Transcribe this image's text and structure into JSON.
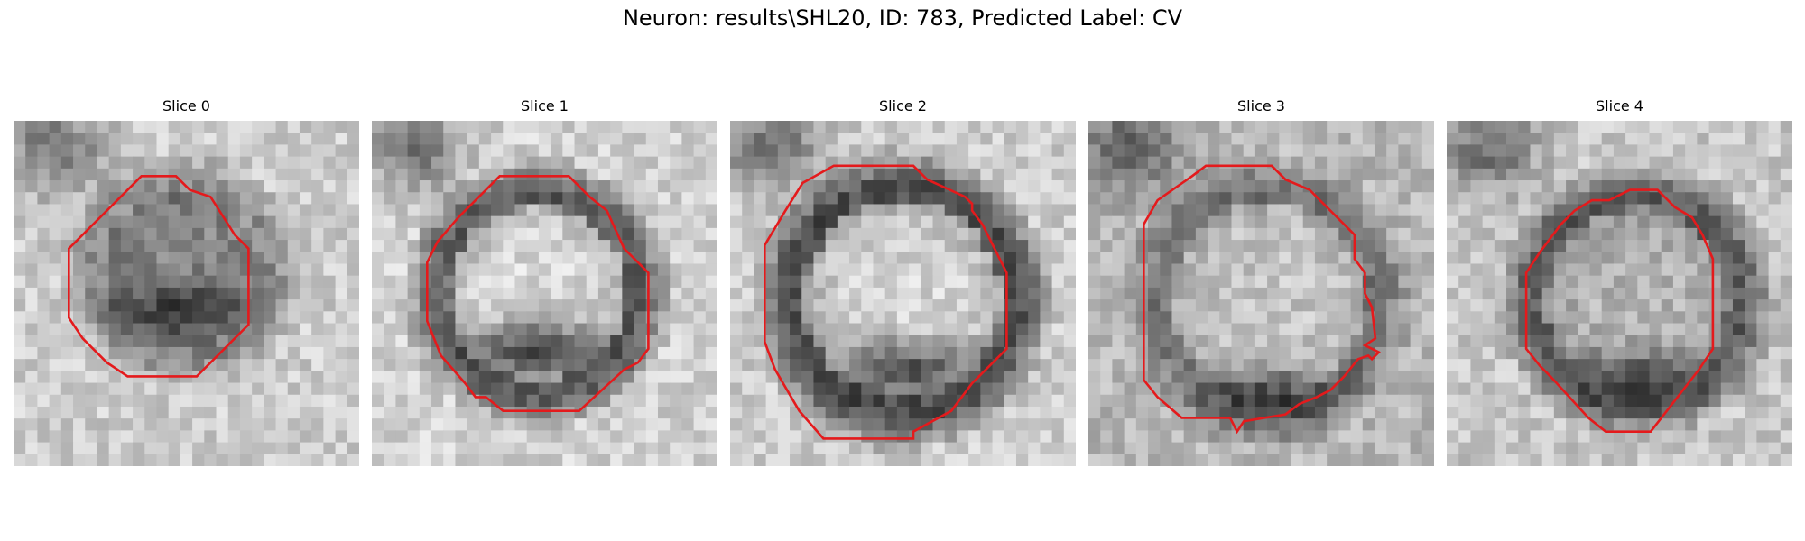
{
  "figure": {
    "title": "Neuron: results\\SHL20, ID: 783, Predicted Label: CV"
  },
  "contour_color": "#e41a1c",
  "panels": [
    {
      "title": "Slice 0"
    },
    {
      "title": "Slice 1"
    },
    {
      "title": "Slice 2"
    },
    {
      "title": "Slice 3"
    },
    {
      "title": "Slice 4"
    }
  ]
}
